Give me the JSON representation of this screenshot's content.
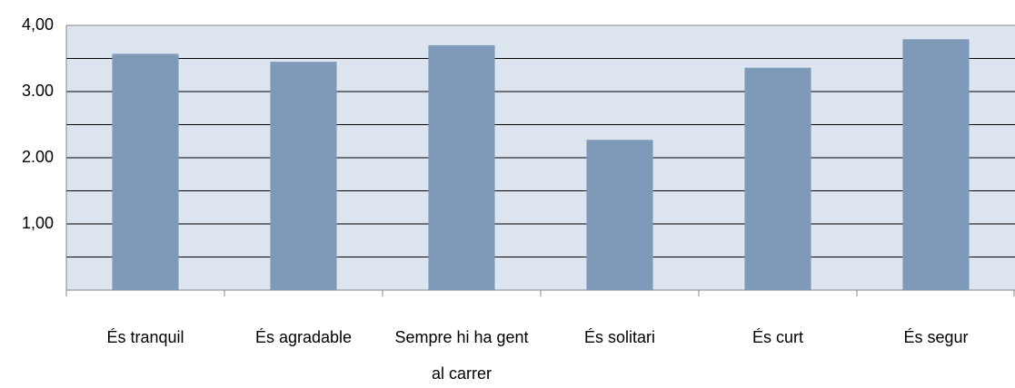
{
  "chart_data": {
    "type": "bar",
    "categories": [
      "És tranquil",
      "És agradable",
      "Sempre hi ha gent al carrer",
      "És solitari",
      "És curt",
      "És segur"
    ],
    "values": [
      3.57,
      3.45,
      3.7,
      2.27,
      3.36,
      3.79
    ],
    "color": "#7f99b8",
    "ylim": [
      0,
      4
    ],
    "yticks": [
      {
        "value": 1,
        "label": "1,00"
      },
      {
        "value": 2,
        "label": "2.00"
      },
      {
        "value": 3,
        "label": "3.00"
      },
      {
        "value": 4,
        "label": "4,00"
      }
    ],
    "minor_yticks": [
      0.5,
      1.5,
      2.5,
      3.5
    ],
    "grid": true
  }
}
